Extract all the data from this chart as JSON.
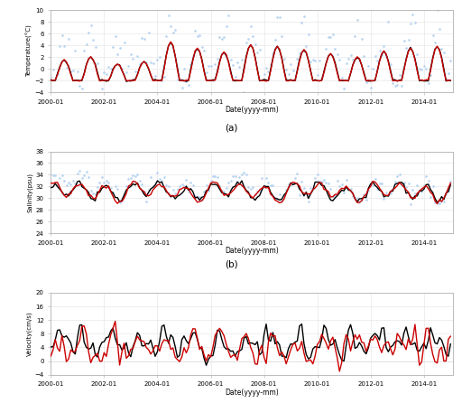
{
  "title_a": "(a)",
  "title_b": "(b)",
  "xlabel": "Date(yyyy-mm)",
  "ylabel_temp": "Temperature(°C)",
  "ylabel_sal": "Salinity(psu)",
  "ylabel_vel": "Velocity(cm/s)",
  "ylim_temp": [
    -4,
    10
  ],
  "ylim_sal": [
    24,
    38
  ],
  "ylim_vel": [
    -4,
    20
  ],
  "yticks_temp": [
    -4,
    -2,
    0,
    2,
    4,
    6,
    8,
    10
  ],
  "yticks_sal": [
    24,
    26,
    28,
    30,
    32,
    34,
    36,
    38
  ],
  "yticks_vel": [
    -4,
    0,
    4,
    8,
    12,
    16,
    20
  ],
  "color_caseY": "#000000",
  "color_case2": "#cc0000",
  "color_en4": "#aaccee",
  "lw_model": 1.0,
  "ms_en4": 3.5,
  "n_months": 181,
  "background_color": "#ffffff",
  "grid_color": "#e8e8e8",
  "spine_color": "#bbbbbb"
}
